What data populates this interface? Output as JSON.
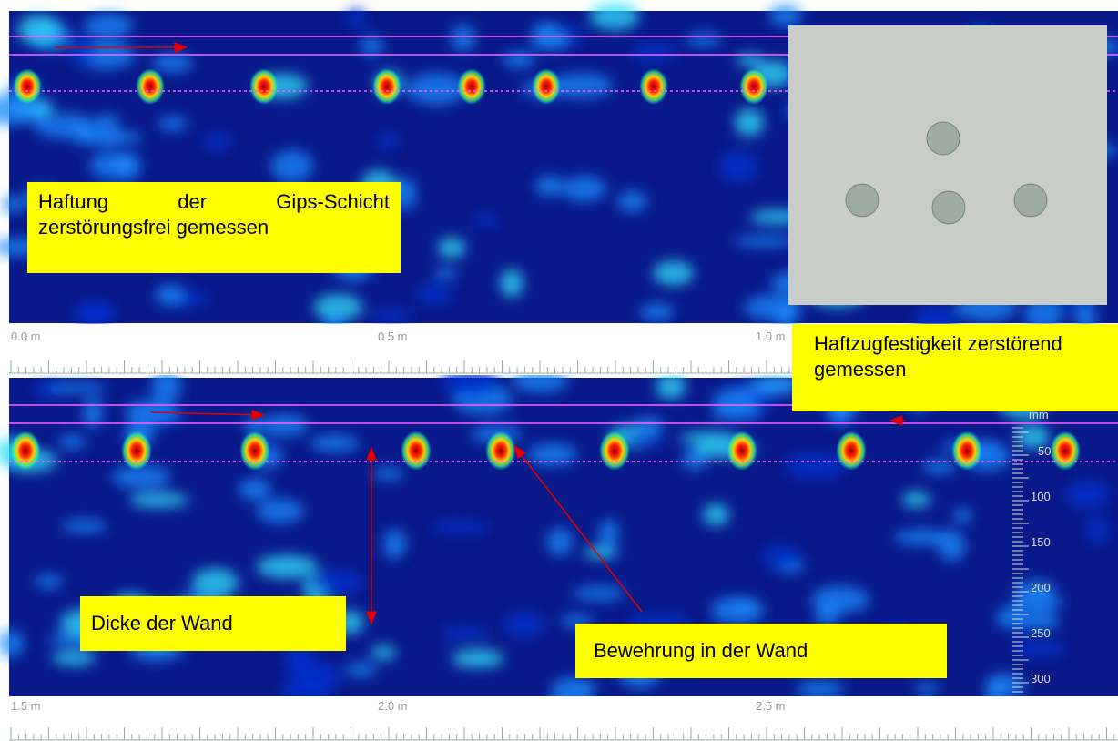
{
  "annotations": {
    "adhesion": "Haftung der Gips-Schicht zerstörungsfrei gemessen",
    "pull_off": "Haftzugfestigkeit zerstörend gemessen",
    "thickness": "Dicke der Wand",
    "rebar": "Bewehrung in der Wand"
  },
  "ruler_top": [
    "0.0 m",
    "0.5 m",
    "1.0 m"
  ],
  "ruler_bottom": [
    "1.5 m",
    "2.0 m",
    "2.5 m"
  ],
  "depth_scale": {
    "unit": "mm",
    "labels": [
      50,
      100,
      150,
      200,
      250,
      300
    ]
  }
}
